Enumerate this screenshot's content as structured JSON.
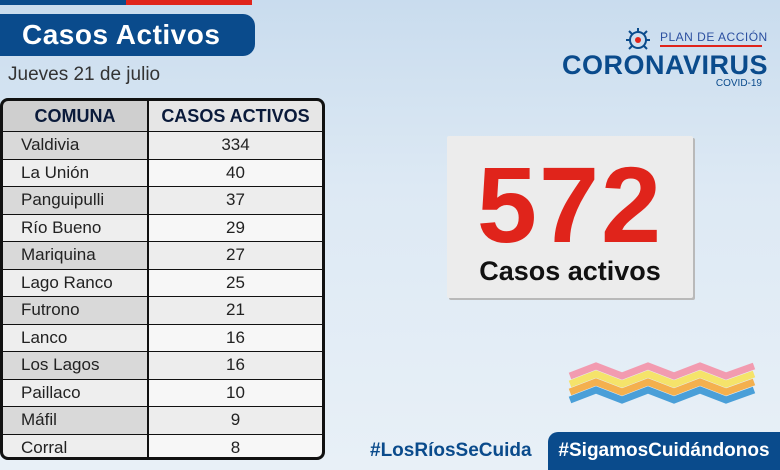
{
  "header": {
    "title": "Casos Activos",
    "date": "Jueves 21 de julio"
  },
  "table": {
    "columns": [
      "COMUNA",
      "CASOS ACTIVOS"
    ],
    "rows": [
      {
        "comuna": "Valdivia",
        "casos": "334"
      },
      {
        "comuna": "La Unión",
        "casos": "40"
      },
      {
        "comuna": "Panguipulli",
        "casos": "37"
      },
      {
        "comuna": "Río Bueno",
        "casos": "29"
      },
      {
        "comuna": "Mariquina",
        "casos": "27"
      },
      {
        "comuna": "Lago Ranco",
        "casos": "25"
      },
      {
        "comuna": "Futrono",
        "casos": "21"
      },
      {
        "comuna": "Lanco",
        "casos": "16"
      },
      {
        "comuna": "Los Lagos",
        "casos": "16"
      },
      {
        "comuna": "Paillaco",
        "casos": "10"
      },
      {
        "comuna": "Máfil",
        "casos": "9"
      },
      {
        "comuna": "Corral",
        "casos": "8"
      }
    ]
  },
  "logo": {
    "plan": "PLAN DE ACCIÓN",
    "name": "CORONAVIRUS",
    "sub": "COVID-19",
    "icon": "virus-icon"
  },
  "summary": {
    "total": "572",
    "label": "Casos activos"
  },
  "footer": {
    "hashtag_left": "#LosRíosSeCuida",
    "hashtag_right": "#SigamosCuidándonos"
  },
  "colors": {
    "brand_blue": "#0a4b8c",
    "accent_red": "#e0241b"
  }
}
